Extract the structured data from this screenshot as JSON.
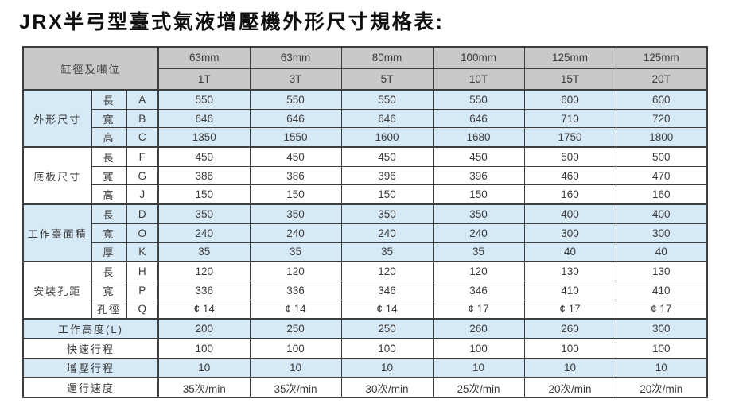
{
  "title": "JRX半弓型臺式氣液增壓機外形尺寸規格表:",
  "table": {
    "corner_label": "缸徑及噸位",
    "columns": [
      {
        "diameter": "63mm",
        "tonnage": "1T"
      },
      {
        "diameter": "63mm",
        "tonnage": "3T"
      },
      {
        "diameter": "80mm",
        "tonnage": "5T"
      },
      {
        "diameter": "100mm",
        "tonnage": "10T"
      },
      {
        "diameter": "125mm",
        "tonnage": "15T"
      },
      {
        "diameter": "125mm",
        "tonnage": "20T"
      }
    ],
    "groups": [
      {
        "label": "外形尺寸",
        "shaded": true,
        "rows": [
          {
            "dim": "長",
            "code": "A",
            "values": [
              "550",
              "550",
              "550",
              "550",
              "600",
              "600"
            ]
          },
          {
            "dim": "寬",
            "code": "B",
            "values": [
              "646",
              "646",
              "646",
              "646",
              "710",
              "720"
            ]
          },
          {
            "dim": "高",
            "code": "C",
            "values": [
              "1350",
              "1550",
              "1600",
              "1680",
              "1750",
              "1800"
            ]
          }
        ]
      },
      {
        "label": "底板尺寸",
        "shaded": false,
        "rows": [
          {
            "dim": "長",
            "code": "F",
            "values": [
              "450",
              "450",
              "450",
              "450",
              "500",
              "500"
            ]
          },
          {
            "dim": "寬",
            "code": "G",
            "values": [
              "386",
              "386",
              "396",
              "396",
              "460",
              "470"
            ]
          },
          {
            "dim": "高",
            "code": "J",
            "values": [
              "150",
              "150",
              "150",
              "150",
              "160",
              "160"
            ]
          }
        ]
      },
      {
        "label": "工作臺面積",
        "shaded": true,
        "rows": [
          {
            "dim": "長",
            "code": "D",
            "values": [
              "350",
              "350",
              "350",
              "350",
              "400",
              "400"
            ]
          },
          {
            "dim": "寬",
            "code": "O",
            "values": [
              "240",
              "240",
              "240",
              "240",
              "300",
              "300"
            ]
          },
          {
            "dim": "厚",
            "code": "K",
            "values": [
              "35",
              "35",
              "35",
              "35",
              "40",
              "40"
            ]
          }
        ]
      },
      {
        "label": "安裝孔距",
        "shaded": false,
        "rows": [
          {
            "dim": "長",
            "code": "H",
            "values": [
              "120",
              "120",
              "120",
              "120",
              "130",
              "130"
            ]
          },
          {
            "dim": "寬",
            "code": "P",
            "values": [
              "336",
              "336",
              "346",
              "346",
              "410",
              "410"
            ]
          },
          {
            "dim": "孔徑",
            "code": "Q",
            "values": [
              "¢ 14",
              "¢ 14",
              "¢ 14",
              "¢ 17",
              "¢ 17",
              "¢ 17"
            ]
          }
        ]
      }
    ],
    "summary_rows": [
      {
        "label": "工作高度(L)",
        "shaded": true,
        "values": [
          "200",
          "250",
          "250",
          "260",
          "260",
          "300"
        ]
      },
      {
        "label": "快速行程",
        "shaded": false,
        "values": [
          "100",
          "100",
          "100",
          "100",
          "100",
          "100"
        ]
      },
      {
        "label": "增壓行程",
        "shaded": true,
        "values": [
          "10",
          "10",
          "10",
          "10",
          "10",
          "10"
        ]
      },
      {
        "label": "運行速度",
        "shaded": false,
        "values": [
          "35次/min",
          "35次/min",
          "30次/min",
          "25次/min",
          "20次/min",
          "20次/min"
        ]
      }
    ],
    "colors": {
      "header_bg": "#c9c9c9",
      "shaded_row_bg": "#d6e9f7",
      "plain_row_bg": "#ffffff",
      "border": "#3e3e3e",
      "text": "#3a3a3a",
      "title_text": "#0f0f0f"
    }
  }
}
